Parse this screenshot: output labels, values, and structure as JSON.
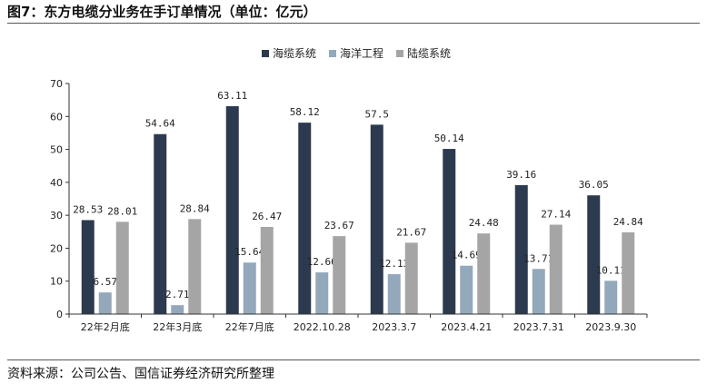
{
  "header": {
    "title": "图7：东方电缆分业务在手订单情况（单位：亿元）"
  },
  "footer": {
    "source": "资料来源：公司公告、国信证券经济研究所整理"
  },
  "chart_data": {
    "type": "bar",
    "categories": [
      "22年2月底",
      "22年3月底",
      "22年7月底",
      "2022.10.28",
      "2023.3.7",
      "2023.4.21",
      "2023.7.31",
      "2023.9.30"
    ],
    "series": [
      {
        "name": "海缆系统",
        "color": "#2c3a4f",
        "values": [
          28.53,
          54.64,
          63.11,
          58.12,
          57.5,
          50.14,
          39.16,
          36.05
        ],
        "labels": [
          "28.53",
          "54.64",
          "63.11",
          "58.12",
          "57.5",
          "50.14",
          "39.16",
          "36.05"
        ]
      },
      {
        "name": "海洋工程",
        "color": "#93a8ba",
        "values": [
          6.57,
          2.71,
          15.64,
          12.66,
          12.13,
          14.69,
          13.71,
          10.11
        ],
        "labels": [
          "6.57",
          "2.71",
          "15.64",
          "12.66",
          "12.13",
          "14.69",
          "13.71",
          "10.11"
        ]
      },
      {
        "name": "陆缆系统",
        "color": "#a5a5a5",
        "values": [
          28.01,
          28.84,
          26.47,
          23.67,
          21.67,
          24.48,
          27.14,
          24.84
        ],
        "labels": [
          "28.01",
          "28.84",
          "26.47",
          "23.67",
          "21.67",
          "24.48",
          "27.14",
          "24.84"
        ]
      }
    ],
    "yticks": [
      "0",
      "10",
      "20",
      "30",
      "40",
      "50",
      "60",
      "70"
    ],
    "ylim": [
      0,
      70
    ],
    "grid": false,
    "legend": "top-right"
  }
}
